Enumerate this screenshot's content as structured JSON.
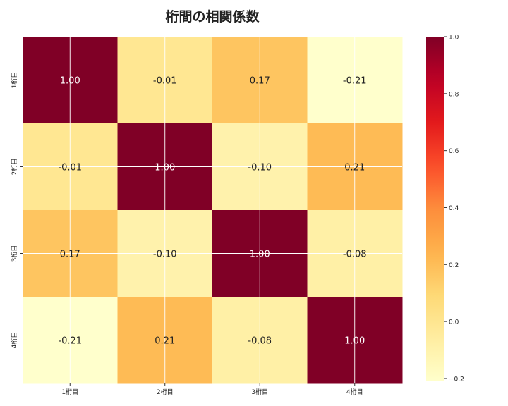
{
  "chart_data": {
    "type": "heatmap",
    "title": "桁間の相関係数",
    "row_labels": [
      "1桁目",
      "2桁目",
      "3桁目",
      "4桁目"
    ],
    "col_labels": [
      "1桁目",
      "2桁目",
      "3桁目",
      "4桁目"
    ],
    "values": [
      [
        1.0,
        -0.01,
        0.17,
        -0.21
      ],
      [
        -0.01,
        1.0,
        -0.1,
        0.21
      ],
      [
        0.17,
        -0.1,
        1.0,
        -0.08
      ],
      [
        -0.21,
        0.21,
        -0.08,
        1.0
      ]
    ],
    "annotations": [
      [
        "1.00",
        "-0.01",
        "0.17",
        "-0.21"
      ],
      [
        "-0.01",
        "1.00",
        "-0.10",
        "0.21"
      ],
      [
        "0.17",
        "-0.10",
        "1.00",
        "-0.08"
      ],
      [
        "-0.21",
        "0.21",
        "-0.08",
        "1.00"
      ]
    ],
    "colormap": "YlOrRd",
    "color_range": [
      -0.21,
      1.0
    ],
    "colorbar_ticks": [
      "1.0",
      "0.8",
      "0.6",
      "0.4",
      "0.2",
      "0.0",
      "−0.2"
    ],
    "colorbar_tick_values": [
      1.0,
      0.8,
      0.6,
      0.4,
      0.2,
      0.0,
      -0.2
    ],
    "grid": true
  }
}
